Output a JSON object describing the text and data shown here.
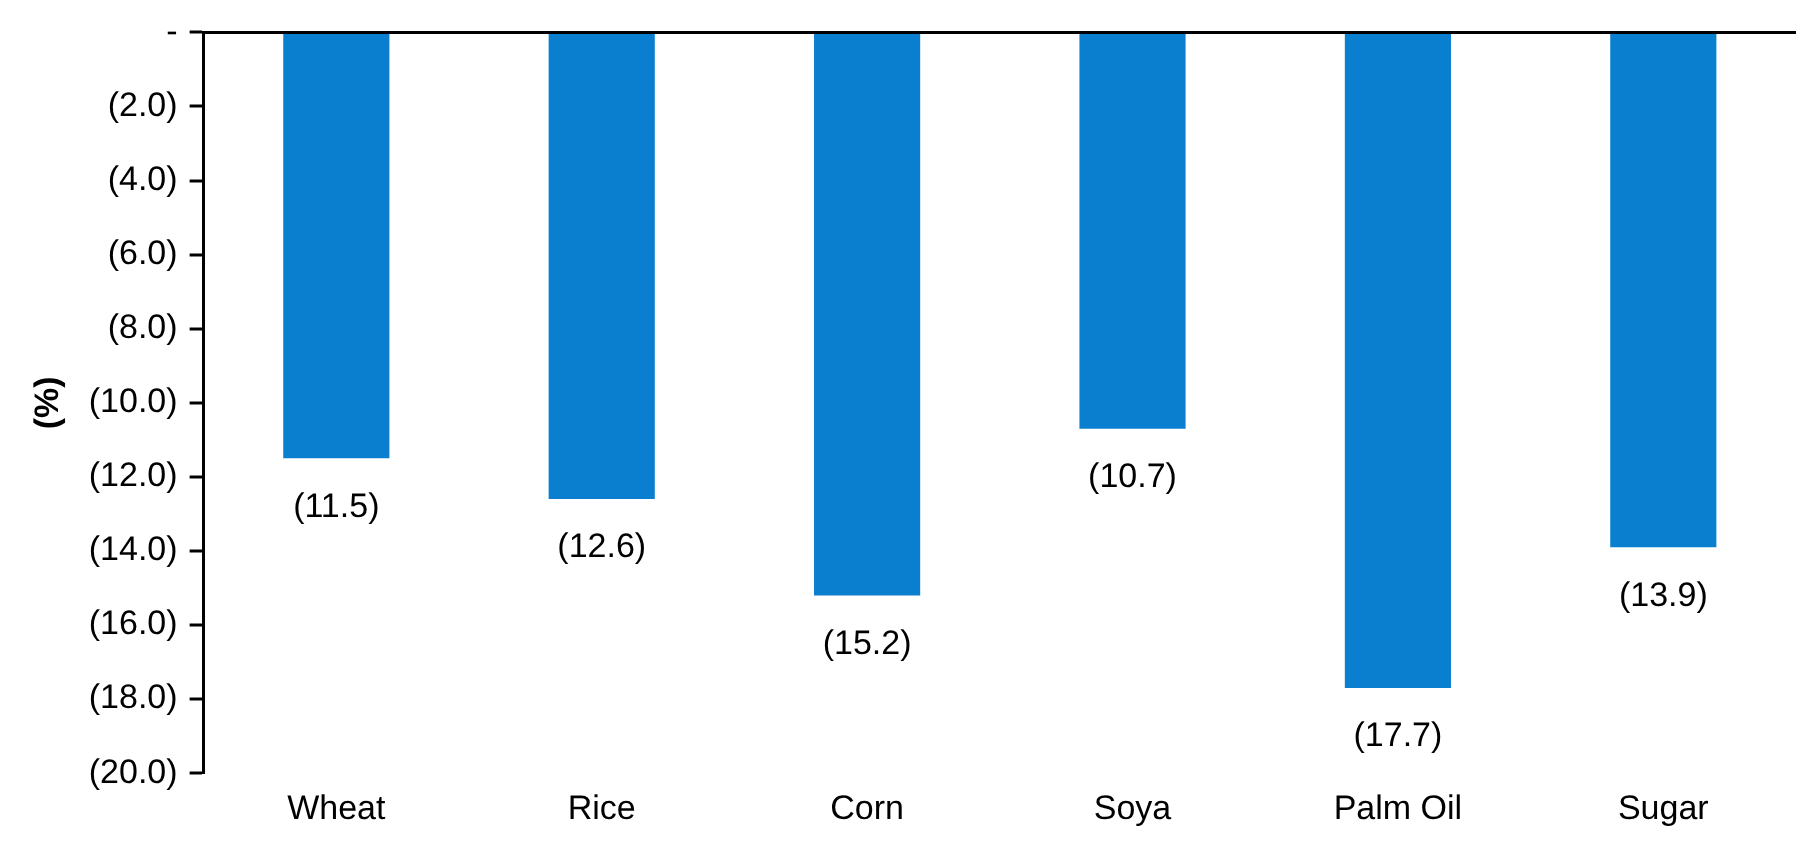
{
  "chart_data": {
    "type": "bar",
    "ylabel": "(%)",
    "categories": [
      "Wheat",
      "Rice",
      "Corn",
      "Soya",
      "Palm Oil",
      "Sugar"
    ],
    "values": [
      -11.5,
      -12.6,
      -15.2,
      -10.7,
      -17.7,
      -13.9
    ],
    "value_labels": [
      "(11.5)",
      "(12.6)",
      "(15.2)",
      "(10.7)",
      "(17.7)",
      "(13.9)"
    ],
    "color": "#0a7fd0",
    "ylim": [
      -20,
      0
    ],
    "yticks": [
      {
        "value": 0,
        "label": "-"
      },
      {
        "value": -2,
        "label": "(2.0)"
      },
      {
        "value": -4,
        "label": "(4.0)"
      },
      {
        "value": -6,
        "label": "(6.0)"
      },
      {
        "value": -8,
        "label": "(8.0)"
      },
      {
        "value": -10,
        "label": "(10.0)"
      },
      {
        "value": -12,
        "label": "(12.0)"
      },
      {
        "value": -14,
        "label": "(14.0)"
      },
      {
        "value": -16,
        "label": "(16.0)"
      },
      {
        "value": -18,
        "label": "(18.0)"
      },
      {
        "value": -20,
        "label": "(20.0)"
      }
    ],
    "grid": false,
    "legend": false
  }
}
